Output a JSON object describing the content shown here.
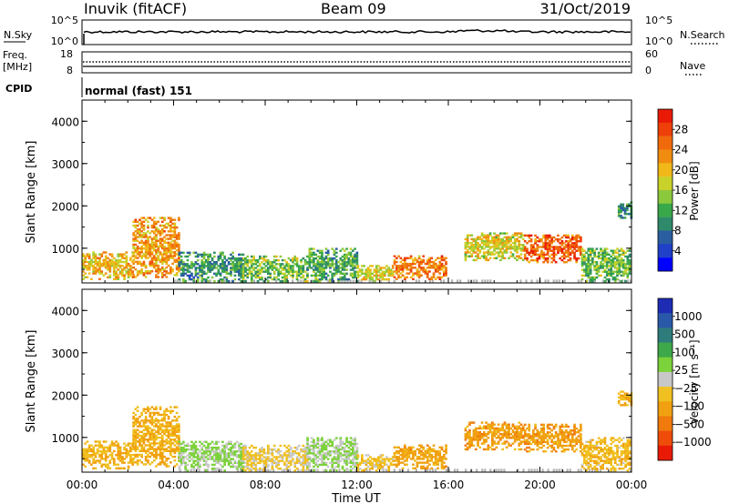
{
  "header": {
    "station": "Inuvik (fitACF)",
    "beam": "Beam 09",
    "date": "31/Oct/2019"
  },
  "strip_nsky": {
    "left_label": "N.Sky",
    "left_ticks": [
      "10^5",
      "10^0"
    ],
    "right_label": "N.Search",
    "right_ticks": [
      "10^5",
      "10^0"
    ],
    "right_legend_style": "dotted"
  },
  "strip_freq": {
    "left_label_line1": "Freq.",
    "left_label_line2": "[MHz]",
    "left_ticks": [
      "18",
      "8"
    ],
    "right_label": "Nave",
    "right_ticks": [
      "60",
      "0"
    ],
    "right_legend_style": "dotted"
  },
  "cpid": {
    "label": "CPID",
    "value": "normal (fast) 151"
  },
  "colors": {
    "ground_scatter": "#b4b4b4",
    "axis": "#000000"
  },
  "chart_data": [
    {
      "type": "heatmap",
      "panel": "power",
      "ylabel": "Slant Range [km]",
      "yticks": [
        "1000",
        "2000",
        "3000",
        "4000"
      ],
      "ylim": [
        180,
        4500
      ],
      "xlim_hours": [
        0,
        24
      ],
      "colorbar": {
        "label": "Power [dB]",
        "ticks": [
          "4",
          "8",
          "12",
          "16",
          "20",
          "24",
          "28"
        ],
        "range": [
          0,
          32
        ],
        "colors": [
          "#0000ff",
          "#2040c8",
          "#2a5ea0",
          "#2e8a6a",
          "#38a84a",
          "#8cc83c",
          "#c8d22a",
          "#f0b818",
          "#f08c10",
          "#f06a0c",
          "#ee4008",
          "#e81a06"
        ]
      },
      "echo_regions": [
        {
          "t0": 0.0,
          "t1": 2.2,
          "r0": 250,
          "r1": 900,
          "value": 20
        },
        {
          "t0": 2.2,
          "t1": 4.2,
          "r0": 300,
          "r1": 1700,
          "value": 22
        },
        {
          "t0": 4.2,
          "t1": 7.0,
          "r0": 200,
          "r1": 900,
          "value": 10
        },
        {
          "t0": 7.0,
          "t1": 9.8,
          "r0": 200,
          "r1": 800,
          "value": 14
        },
        {
          "t0": 9.8,
          "t1": 12.0,
          "r0": 200,
          "r1": 1000,
          "value": 12
        },
        {
          "t0": 12.0,
          "t1": 13.6,
          "r0": 200,
          "r1": 600,
          "value": 18
        },
        {
          "t0": 13.6,
          "t1": 15.9,
          "r0": 250,
          "r1": 800,
          "value": 24
        },
        {
          "t0": 16.7,
          "t1": 19.3,
          "r0": 700,
          "r1": 1350,
          "value": 18
        },
        {
          "t0": 19.3,
          "t1": 21.8,
          "r0": 650,
          "r1": 1300,
          "value": 26
        },
        {
          "t0": 21.8,
          "t1": 23.9,
          "r0": 200,
          "r1": 1000,
          "value": 14
        },
        {
          "t0": 23.4,
          "t1": 24.0,
          "r0": 1700,
          "r1": 2100,
          "value": 10
        }
      ]
    },
    {
      "type": "heatmap",
      "panel": "velocity",
      "ylabel": "Slant Range [km]",
      "yticks": [
        "1000",
        "2000",
        "3000",
        "4000"
      ],
      "ylim": [
        180,
        4500
      ],
      "xlim_hours": [
        0,
        24
      ],
      "xticks": [
        "00:00",
        "04:00",
        "08:00",
        "12:00",
        "16:00",
        "20:00",
        "00:00"
      ],
      "xlabel": "Time UT",
      "colorbar": {
        "label": "Velocity [m s⁻¹]",
        "ticks": [
          "1000",
          "500",
          "100",
          "25",
          "−25",
          "−100",
          "−500",
          "−1000"
        ],
        "range": [
          -1200,
          1200
        ],
        "colors": [
          "#1e2cb4",
          "#2a58a8",
          "#2e7c7c",
          "#3ea84a",
          "#7cd23a",
          "#c8c8c8",
          "#f0c020",
          "#f0a010",
          "#f07a0c",
          "#ee4c08",
          "#e81a06"
        ]
      },
      "echo_regions": [
        {
          "t0": 0.0,
          "t1": 2.2,
          "r0": 250,
          "r1": 900,
          "value": -300
        },
        {
          "t0": 2.2,
          "t1": 4.2,
          "r0": 300,
          "r1": 1700,
          "value": -350
        },
        {
          "t0": 4.2,
          "t1": 7.0,
          "r0": 200,
          "r1": 900,
          "value": 150
        },
        {
          "t0": 7.0,
          "t1": 9.8,
          "r0": 200,
          "r1": 800,
          "value": -150
        },
        {
          "t0": 9.8,
          "t1": 12.0,
          "r0": 200,
          "r1": 1000,
          "value": 120
        },
        {
          "t0": 12.0,
          "t1": 13.6,
          "r0": 200,
          "r1": 600,
          "value": -200
        },
        {
          "t0": 13.6,
          "t1": 15.9,
          "r0": 250,
          "r1": 800,
          "value": -400
        },
        {
          "t0": 16.7,
          "t1": 19.3,
          "r0": 700,
          "r1": 1350,
          "value": -450
        },
        {
          "t0": 19.3,
          "t1": 21.8,
          "r0": 650,
          "r1": 1300,
          "value": -450
        },
        {
          "t0": 21.8,
          "t1": 23.9,
          "r0": 200,
          "r1": 1000,
          "value": -250
        },
        {
          "t0": 23.4,
          "t1": 24.0,
          "r0": 1700,
          "r1": 2100,
          "value": -300
        }
      ]
    }
  ]
}
